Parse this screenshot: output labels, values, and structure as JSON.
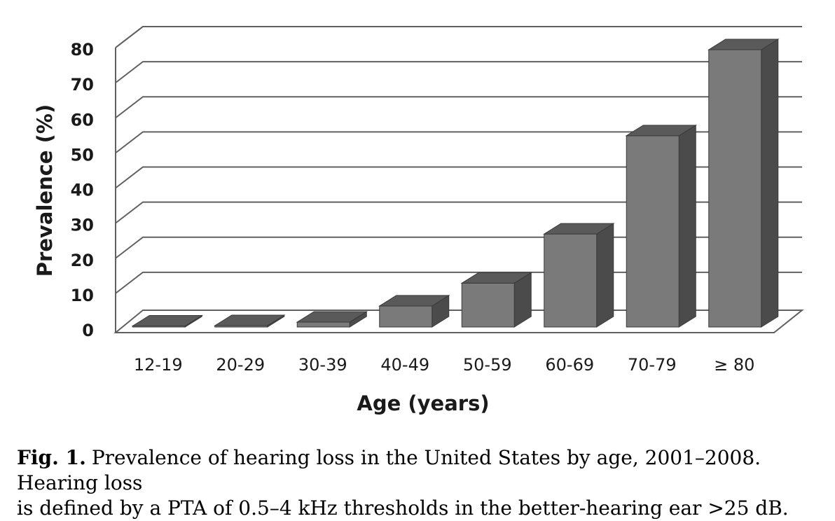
{
  "chart_data": {
    "type": "bar",
    "style": "3d-column",
    "categories": [
      "12-19",
      "20-29",
      "30-39",
      "40-49",
      "50-59",
      "60-69",
      "70-79",
      "≥ 80"
    ],
    "values": [
      0.3,
      0.4,
      1.4,
      6.0,
      12.5,
      26.5,
      54.5,
      79.0
    ],
    "xlabel": "Age (years)",
    "ylabel": "Prevalence (%)",
    "ylim": [
      0,
      80
    ],
    "yticks": [
      0,
      10,
      20,
      30,
      40,
      50,
      60,
      70,
      80
    ],
    "grid": true,
    "legend": "none"
  },
  "caption": {
    "label": "Fig. 1.",
    "line1": "Prevalence of hearing loss in the United States by age, 2001–2008. Hearing loss",
    "line2": "is defined by a PTA of 0.5–4 kHz thresholds in the better-hearing ear >25 dB."
  },
  "colors": {
    "bar_front": "#7a7a7a",
    "bar_top": "#5a5a5a",
    "bar_side": "#4b4b4b",
    "grid": "#606060",
    "text": "#1a1a1a"
  }
}
